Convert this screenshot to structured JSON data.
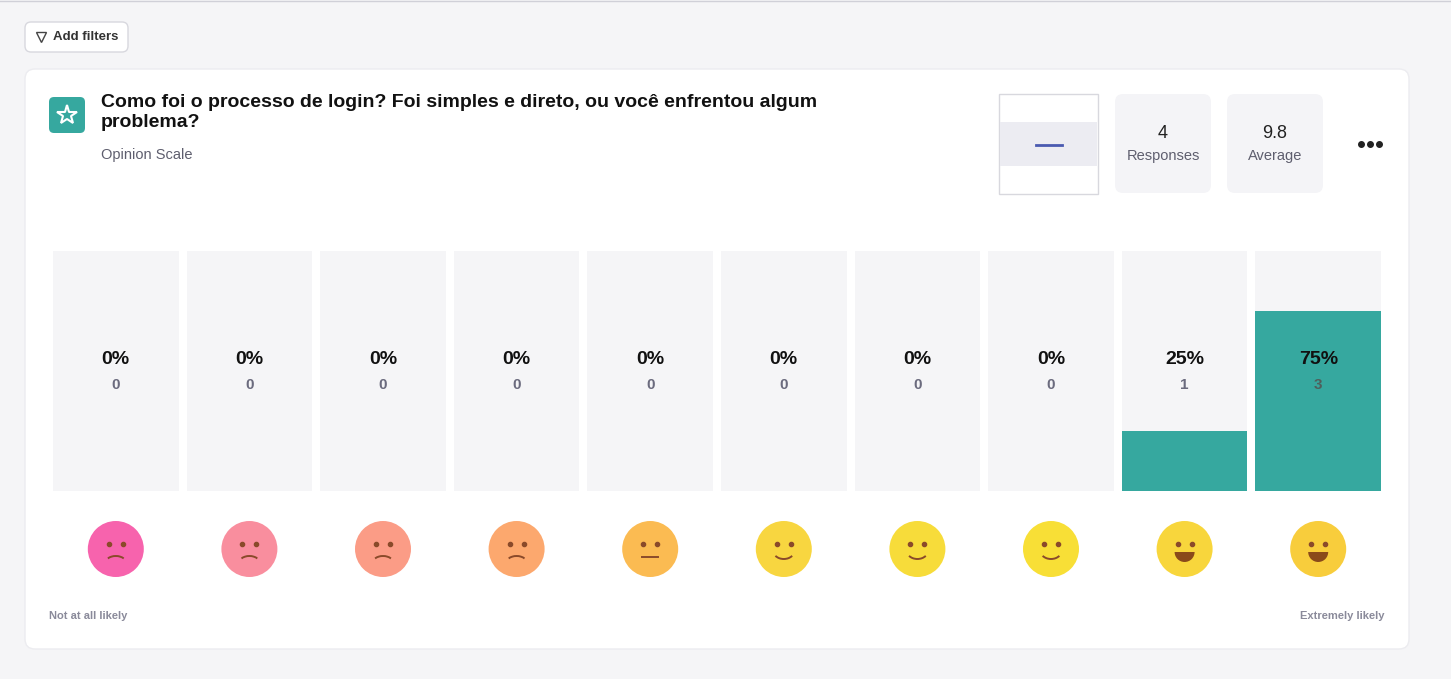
{
  "header": {
    "button": "Add filters"
  },
  "question": {
    "title": "Como foi o processo de login? Foi simples e direto, ou você enfrentou algum problema?",
    "subtitle": "Opinion Scale"
  },
  "stats": [
    {
      "value": 4,
      "label": "Responses"
    },
    {
      "value": 9.8,
      "label": "Average"
    }
  ],
  "chart_data": {
    "type": "bar",
    "categories": [
      null,
      null,
      null,
      null,
      null,
      null,
      null,
      null,
      null,
      null
    ],
    "values": [
      0,
      0,
      0,
      0,
      0,
      0,
      0,
      0,
      25,
      75
    ],
    "value_labels": [
      "0%",
      "0%",
      "0%",
      "0%",
      "0%",
      "0%",
      "0%",
      "0%",
      "25%",
      "75%"
    ],
    "counts": [
      0,
      0,
      0,
      0,
      0,
      0,
      0,
      0,
      1,
      3
    ],
    "color": "#36a89f",
    "ylim": [
      0,
      100
    ],
    "yticks": [
      0,
      100
    ],
    "tick_labels": false,
    "data_labels": true,
    "scale_labels": [
      "Not at all likely",
      "Extremely likely"
    ]
  }
}
